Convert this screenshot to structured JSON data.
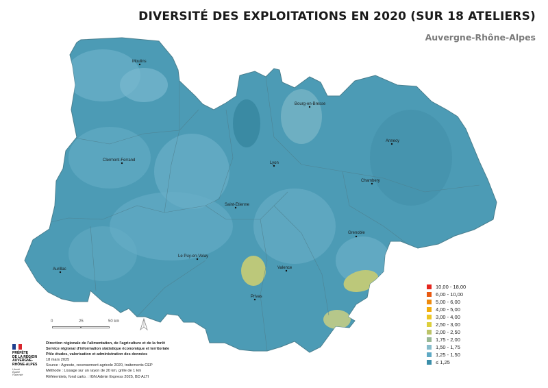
{
  "title": "DIVERSITÉ DES EXPLOITATIONS EN 2020 (SUR 18 ATELIERS)",
  "subtitle": "Auvergne-Rhône-Alpes",
  "cities": [
    "Moulins",
    "Bourg-en-Bresse",
    "Annecy",
    "Clermont-Ferrand",
    "Lyon",
    "Chambery",
    "Saint-Etienne",
    "Grenoble",
    "Le Puy-en-Velay",
    "Valence",
    "Aurillac",
    "Privas"
  ],
  "legend": [
    {
      "label": "10,00 - 18,00",
      "color": "#e5261e"
    },
    {
      "label": "6,00 - 10,00",
      "color": "#e85a12"
    },
    {
      "label": "5,00 - 6,00",
      "color": "#ee8a0d"
    },
    {
      "label": "4,00 - 5,00",
      "color": "#f2ad0c"
    },
    {
      "label": "3,00 - 4,00",
      "color": "#ecc522"
    },
    {
      "label": "2,50 - 3,00",
      "color": "#dccf3c"
    },
    {
      "label": "2,00 - 2,50",
      "color": "#bcc468"
    },
    {
      "label": "1,75 - 2,00",
      "color": "#98b895"
    },
    {
      "label": "1,50 - 1,75",
      "color": "#86bccb"
    },
    {
      "label": "1,25 - 1,50",
      "color": "#5fa9c4"
    },
    {
      "label": "≤ 1,25",
      "color": "#3b8ea9"
    }
  ],
  "scale": {
    "zero": "0",
    "mid": "25",
    "end": "50 km"
  },
  "logo": {
    "lines": [
      "PRÉFÈTE",
      "DE LA RÉGION",
      "AUVERGNE-",
      "RHÔNE-ALPES"
    ],
    "motto": [
      "Liberté",
      "Égalité",
      "Fraternité"
    ]
  },
  "credits": {
    "org1": "Direction régionale de l'alimentation, de l'agriculture et de la forêt",
    "org2": "Service régional d'information statistique économique et territoriale",
    "org3": "Pôle études, valorisation et administration des données",
    "date": "18 mars 2025",
    "source": "Source : Agreste, recensement agricole 2020, traitements CEP",
    "method": "Méthode : Lissage sur un rayon de 20 km, grille de 1 km",
    "refs": "Référentiels, fond carto. : IGN Admin Express 2025, BD ALTI"
  }
}
